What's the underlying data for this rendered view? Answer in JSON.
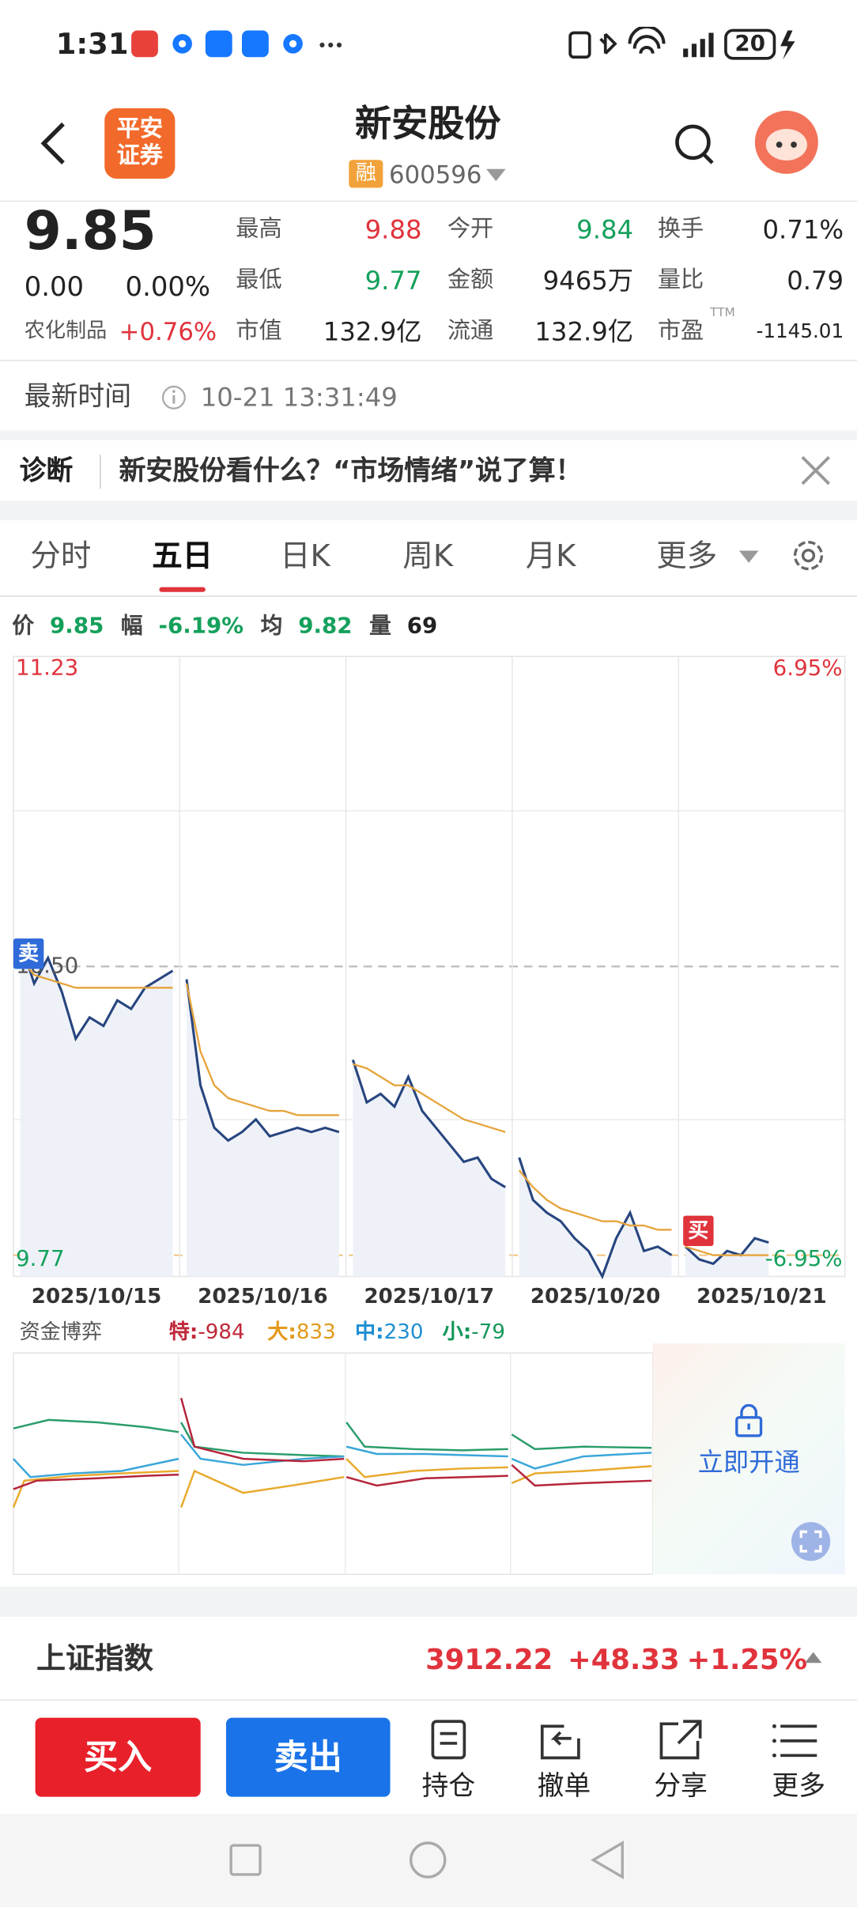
{
  "status_bar": {
    "time": "1:31",
    "battery": "20"
  },
  "header": {
    "logo_lines": [
      "平安",
      "证券"
    ],
    "title": "新安股份",
    "badge": "融",
    "code": "600596"
  },
  "quote": {
    "price": "9.85",
    "change": "0.00",
    "change_pct": "0.00%",
    "sector": "农化制品",
    "sector_change": "+0.76%",
    "stats": [
      {
        "label": "最高",
        "value": "9.88"
      },
      {
        "label": "今开",
        "value": "9.84"
      },
      {
        "label": "换手",
        "value": "0.71%"
      },
      {
        "label": "最低",
        "value": "9.77"
      },
      {
        "label": "金额",
        "value": "9465万"
      },
      {
        "label": "量比",
        "value": "0.79"
      },
      {
        "label": "市值",
        "value": "132.9亿"
      },
      {
        "label": "流通",
        "value": "132.9亿"
      },
      {
        "label": "市盈",
        "value": "-1145.01"
      }
    ],
    "pe_note": "TTM"
  },
  "update": {
    "label": "最新时间",
    "time": "10-21 13:31:49"
  },
  "diagnosis": {
    "label": "诊断",
    "text": "新安股份看什么？“市场情绪”说了算！"
  },
  "tabs": [
    "分时",
    "五日",
    "日K",
    "周K",
    "月K",
    "更多"
  ],
  "info": [
    {
      "label": "价",
      "value": "9.85"
    },
    {
      "label": "幅",
      "value": "-6.19%"
    },
    {
      "label": "均",
      "value": "9.82"
    },
    {
      "label": "量",
      "value": "69"
    }
  ],
  "chart_data": {
    "type": "line",
    "ylim": [
      9.77,
      11.23
    ],
    "yticks": [
      11.23,
      {
        "value": 10.5,
        "label": "10.50"
      },
      9.77
    ],
    "pct_ticks": [
      {
        "value": 6.95,
        "label": "6.95%"
      },
      {
        "value": -6.95,
        "label": "-6.95%"
      }
    ],
    "colors": {
      "price": "#27457f",
      "avg": "#e6a33b"
    },
    "markers": [
      "卖",
      "买"
    ],
    "days": [
      {
        "date": "2025/10/15",
        "price": [
          10.56,
          10.46,
          10.52,
          10.44,
          10.33,
          10.38,
          10.36,
          10.42,
          10.4,
          10.45,
          10.47,
          10.49
        ],
        "avg": [
          10.52,
          10.48,
          10.47,
          10.46,
          10.45,
          10.45,
          10.45,
          10.45,
          10.45,
          10.45,
          10.45,
          10.45
        ]
      },
      {
        "date": "2025/10/16",
        "price": [
          10.47,
          10.22,
          10.12,
          10.09,
          10.11,
          10.14,
          10.1,
          10.11,
          10.12,
          10.11,
          10.12,
          10.11
        ],
        "avg": [
          10.46,
          10.3,
          10.22,
          10.19,
          10.18,
          10.17,
          10.16,
          10.16,
          10.15,
          10.15,
          10.15,
          10.15
        ]
      },
      {
        "date": "2025/10/17",
        "price": [
          10.28,
          10.18,
          10.2,
          10.17,
          10.24,
          10.16,
          10.12,
          10.08,
          10.04,
          10.05,
          10.0,
          9.98
        ],
        "avg": [
          10.27,
          10.26,
          10.24,
          10.22,
          10.22,
          10.2,
          10.18,
          10.16,
          10.14,
          10.13,
          10.12,
          10.11
        ]
      },
      {
        "date": "2025/10/20",
        "price": [
          10.05,
          9.95,
          9.92,
          9.9,
          9.86,
          9.83,
          9.77,
          9.86,
          9.92,
          9.83,
          9.84,
          9.82
        ],
        "avg": [
          10.02,
          9.98,
          9.95,
          9.93,
          9.92,
          9.91,
          9.9,
          9.9,
          9.89,
          9.89,
          9.88,
          9.88
        ]
      },
      {
        "date": "2025/10/21",
        "price": [
          9.84,
          9.81,
          9.8,
          9.83,
          9.82,
          9.86,
          9.85
        ],
        "avg": [
          9.84,
          9.83,
          9.82,
          9.82,
          9.82,
          9.82,
          9.82
        ]
      }
    ]
  },
  "fund_flow": {
    "title": "资金博弈",
    "items": [
      {
        "label": "特:",
        "value": "-984"
      },
      {
        "label": "大:",
        "value": "833"
      },
      {
        "label": "中:",
        "value": "230"
      },
      {
        "label": "小:",
        "value": "-79"
      }
    ],
    "unlock": "立即开通"
  },
  "index": {
    "name": "上证指数",
    "value": "3912.22",
    "change": "+48.33",
    "pct": "+1.25%"
  },
  "actions": {
    "buy": "买入",
    "sell": "卖出",
    "items": [
      "持仓",
      "撤单",
      "分享",
      "更多"
    ]
  }
}
